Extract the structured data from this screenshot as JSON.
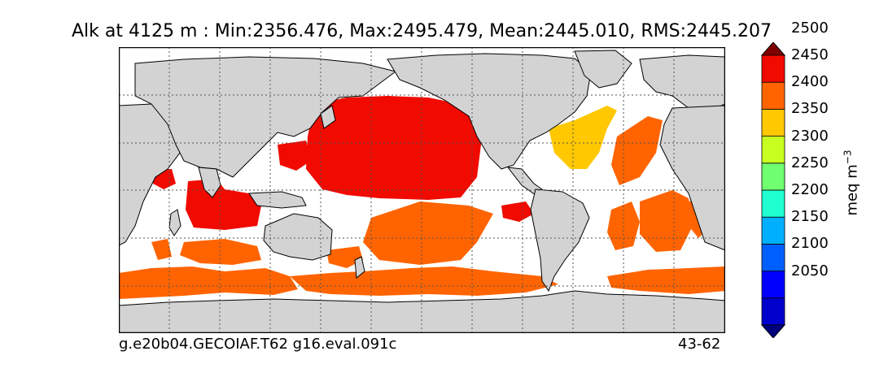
{
  "title": "Alk at 4125 m : Min:2356.476, Max:2495.479, Mean:2445.010, RMS:2445.207",
  "footer": {
    "left": "g.e20b04.GECOIAF.T62 g16.eval.091c",
    "right": "43-62"
  },
  "colorbar": {
    "label": "meq m",
    "label_exponent": "−3",
    "ticks": [
      "2050",
      "2100",
      "2150",
      "2200",
      "2250",
      "2300",
      "2350",
      "2400",
      "2450",
      "2500"
    ],
    "bins": [
      {
        "range": "<2000",
        "color": "#00007f"
      },
      {
        "range": "2000-2050",
        "color": "#0000cc"
      },
      {
        "range": "2050-2100",
        "color": "#0000ff"
      },
      {
        "range": "2100-2150",
        "color": "#0060ff"
      },
      {
        "range": "2150-2200",
        "color": "#00b0ff"
      },
      {
        "range": "2200-2250",
        "color": "#20ffd0"
      },
      {
        "range": "2250-2300",
        "color": "#70ff70"
      },
      {
        "range": "2300-2350",
        "color": "#c8ff20"
      },
      {
        "range": "2350-2400",
        "color": "#ffc800"
      },
      {
        "range": "2400-2450",
        "color": "#ff6400"
      },
      {
        "range": "2450-2500",
        "color": "#f00a00"
      },
      {
        "range": ">2500",
        "color": "#7f0000"
      }
    ]
  },
  "colors": {
    "land": "#d3d3d3",
    "ocean_nodata": "#ffffff",
    "grid": "#555555"
  }
}
